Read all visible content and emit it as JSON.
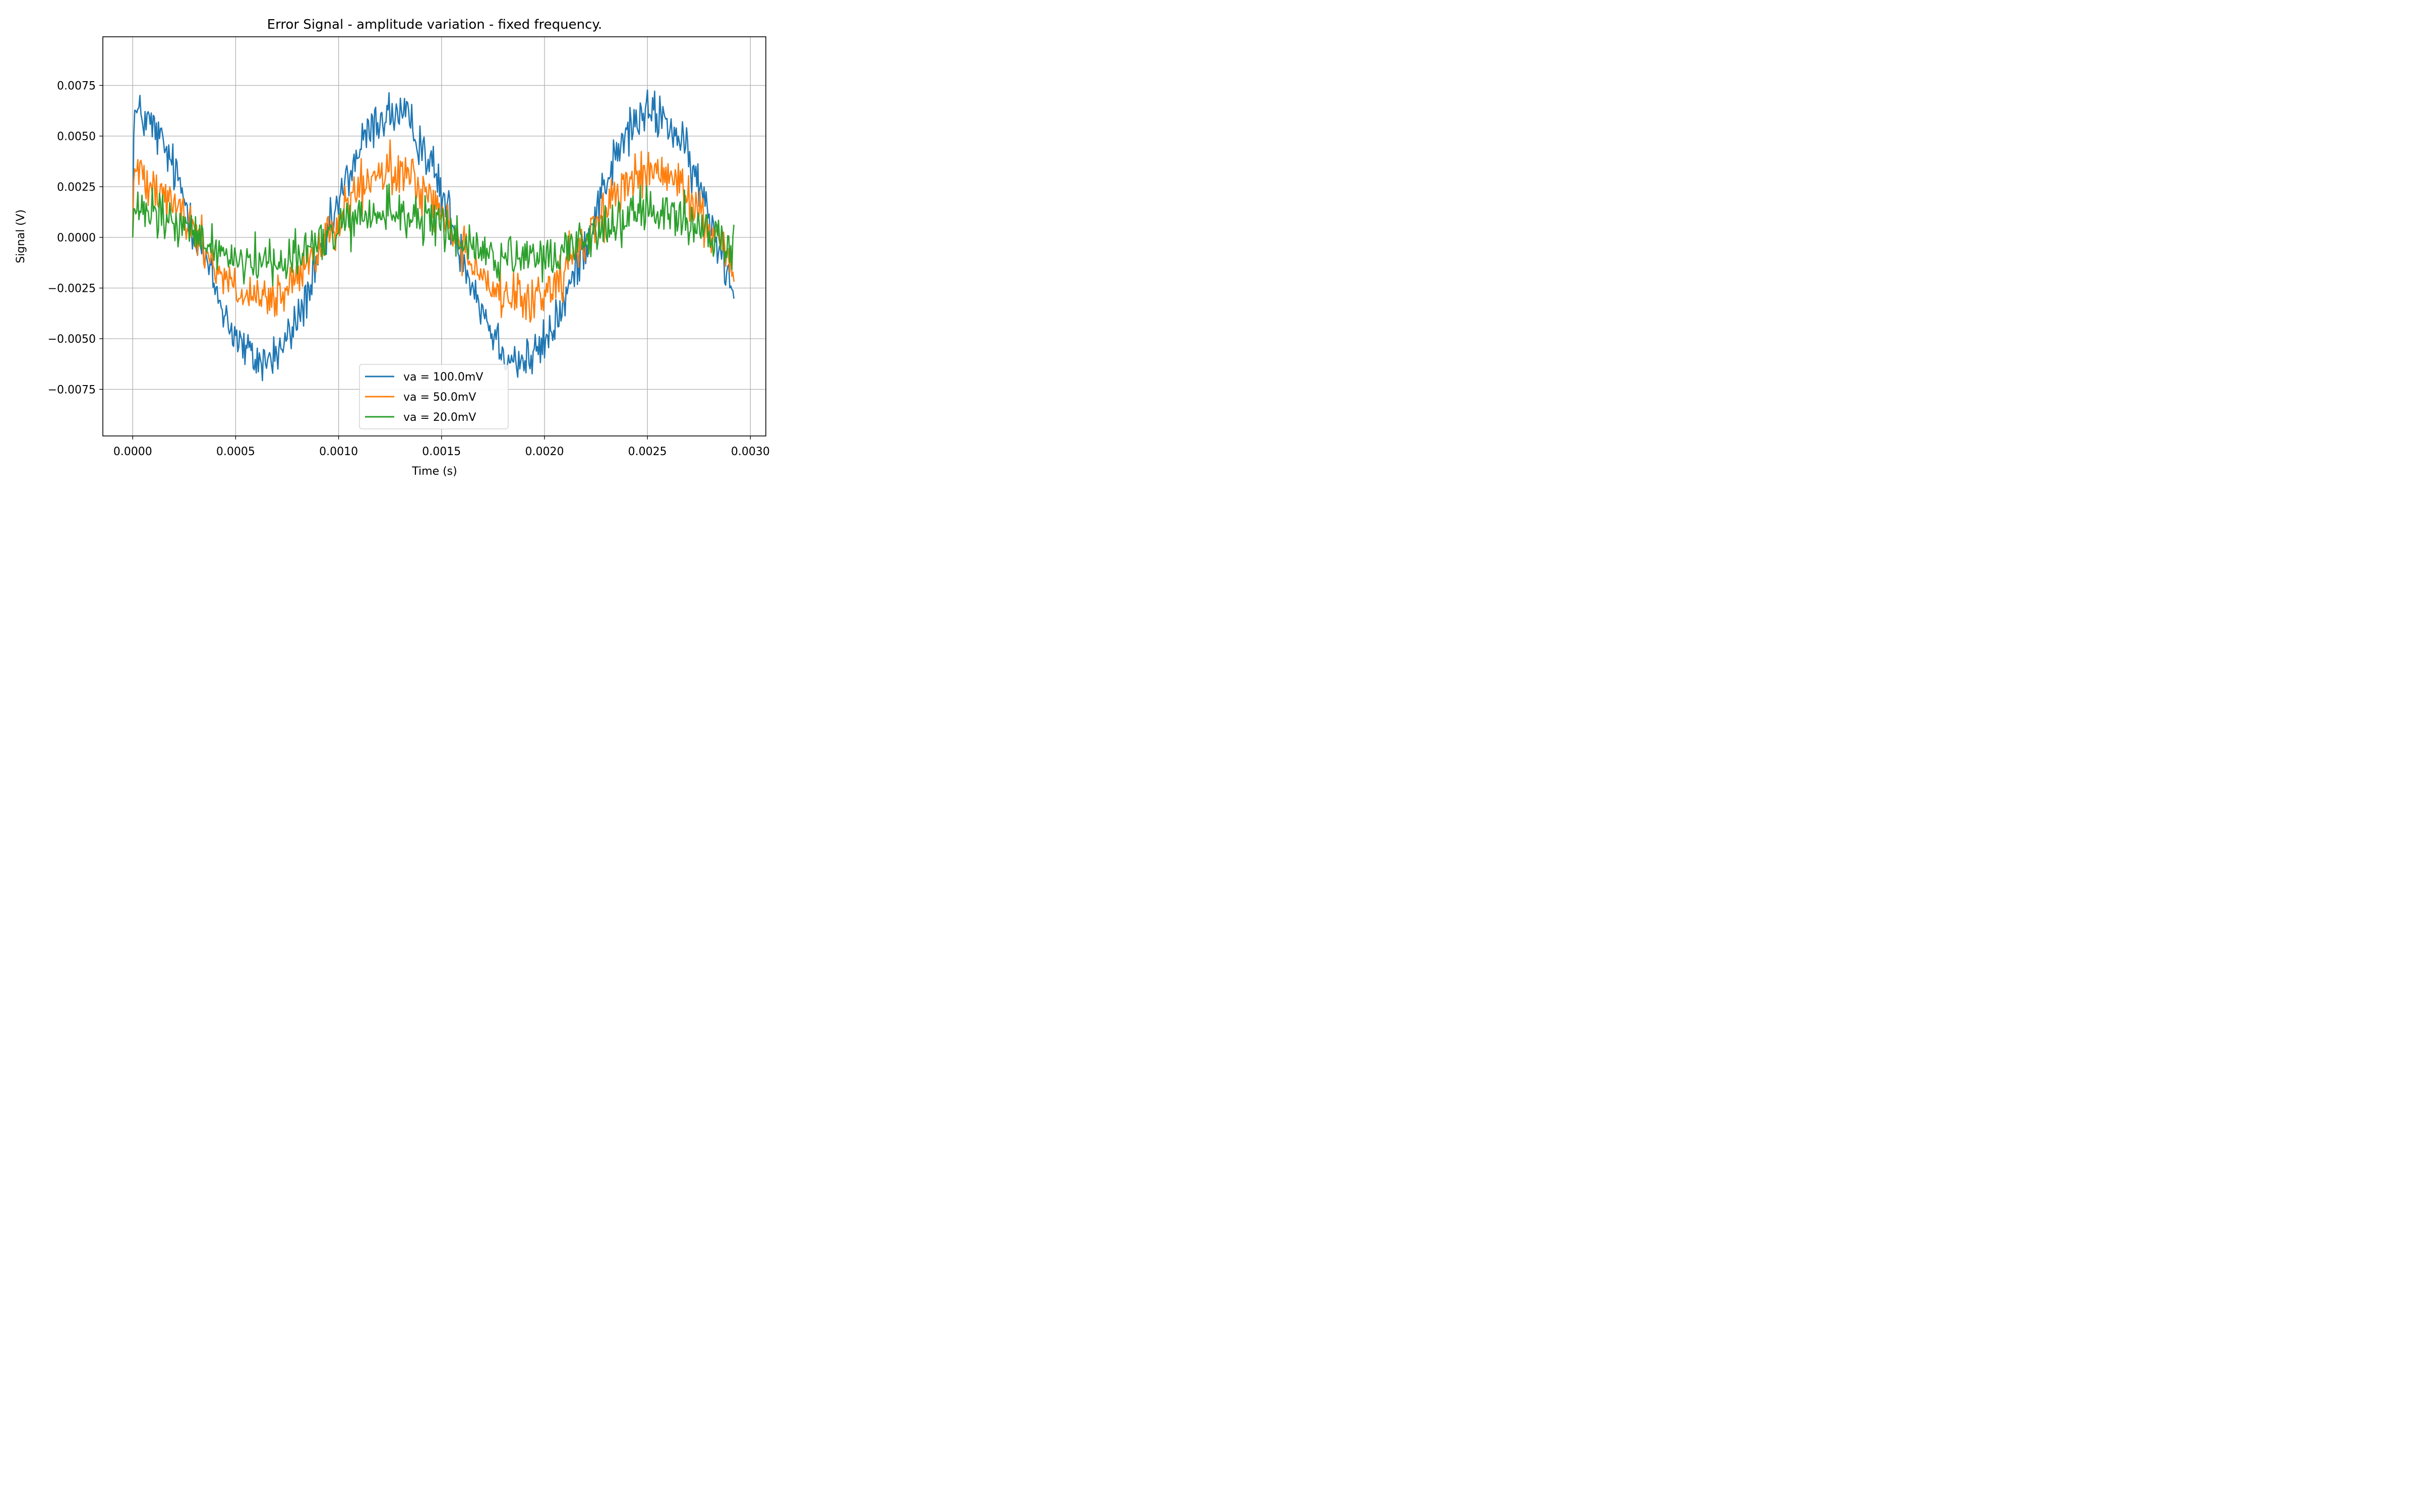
{
  "chart_data": {
    "type": "line",
    "title": "Error Signal - amplitude variation - fixed frequency.",
    "xlabel": "Time (s)",
    "ylabel": "Signal (V)",
    "xlim": [
      -0.000145,
      0.003075
    ],
    "ylim": [
      -0.0098,
      0.0099
    ],
    "xticks": [
      0.0,
      0.0005,
      0.001,
      0.0015,
      0.002,
      0.0025,
      0.003
    ],
    "xtick_labels": [
      "0.0000",
      "0.0005",
      "0.0010",
      "0.0015",
      "0.0020",
      "0.0025",
      "0.0030"
    ],
    "yticks": [
      -0.0075,
      -0.005,
      -0.0025,
      0.0,
      0.0025,
      0.005,
      0.0075
    ],
    "ytick_labels": [
      "−0.0075",
      "−0.0050",
      "−0.0025",
      "0.0000",
      "0.0025",
      "0.0050",
      "0.0075"
    ],
    "grid": true,
    "legend_position": "lower-center",
    "x_range": [
      0.0,
      0.00292
    ],
    "samples": 585,
    "signal_period": 0.00126,
    "series": [
      {
        "name": "va = 100.0mV",
        "color": "#1f77b4",
        "amplitude": 0.0061,
        "noise": 0.0011,
        "peak": 0.0089,
        "trough": -0.0089
      },
      {
        "name": "va = 50.0mV",
        "color": "#ff7f0e",
        "amplitude": 0.0032,
        "noise": 0.0011,
        "peak": 0.0053,
        "trough": -0.0062
      },
      {
        "name": "va = 20.0mV",
        "color": "#2ca02c",
        "amplitude": 0.0012,
        "noise": 0.0011,
        "peak": 0.0042,
        "trough": -0.0032
      }
    ]
  }
}
